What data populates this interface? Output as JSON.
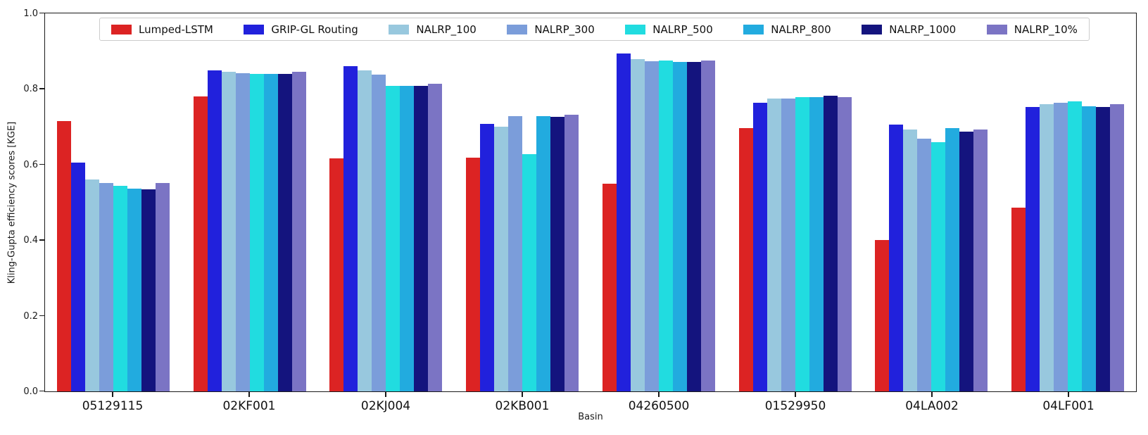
{
  "chart_data": {
    "type": "bar",
    "title": "",
    "xlabel": "Basin",
    "ylabel": "Kling-Gupta efficiency scores [KGE]",
    "ylim": [
      0.0,
      1.0
    ],
    "yticks": [
      "0.0",
      "0.2",
      "0.4",
      "0.6",
      "0.8",
      "1.0"
    ],
    "grid": false,
    "legend_position": "top-inside-horizontal",
    "spine_color": "#1a1a1a",
    "categories": [
      "05129115",
      "02KF001",
      "02KJ004",
      "02KB001",
      "04260500",
      "01529950",
      "04LA002",
      "04LF001"
    ],
    "series": [
      {
        "name": "Lumped-LSTM",
        "color": "#dc2323",
        "values": [
          0.716,
          0.78,
          0.617,
          0.619,
          0.55,
          0.696,
          0.4,
          0.486
        ]
      },
      {
        "name": "GRIP-GL Routing",
        "color": "#2121dc",
        "values": [
          0.605,
          0.85,
          0.861,
          0.707,
          0.894,
          0.764,
          0.705,
          0.752
        ]
      },
      {
        "name": "NALRP_100",
        "color": "#98c8de",
        "values": [
          0.56,
          0.845,
          0.85,
          0.7,
          0.879,
          0.774,
          0.692,
          0.759
        ]
      },
      {
        "name": "NALRP_300",
        "color": "#7b9dda",
        "values": [
          0.552,
          0.841,
          0.838,
          0.728,
          0.874,
          0.774,
          0.669,
          0.763
        ]
      },
      {
        "name": "NALRP_500",
        "color": "#21dce0",
        "values": [
          0.543,
          0.839,
          0.809,
          0.627,
          0.875,
          0.778,
          0.659,
          0.767
        ]
      },
      {
        "name": "NALRP_800",
        "color": "#22abdf",
        "values": [
          0.536,
          0.839,
          0.809,
          0.728,
          0.872,
          0.778,
          0.696,
          0.754
        ]
      },
      {
        "name": "NALRP_1000",
        "color": "#14147e",
        "values": [
          0.535,
          0.839,
          0.808,
          0.727,
          0.872,
          0.782,
          0.687,
          0.753
        ]
      },
      {
        "name": "NALRP_10%",
        "color": "#7b74c4",
        "values": [
          0.551,
          0.845,
          0.813,
          0.731,
          0.875,
          0.779,
          0.693,
          0.76
        ]
      }
    ]
  }
}
